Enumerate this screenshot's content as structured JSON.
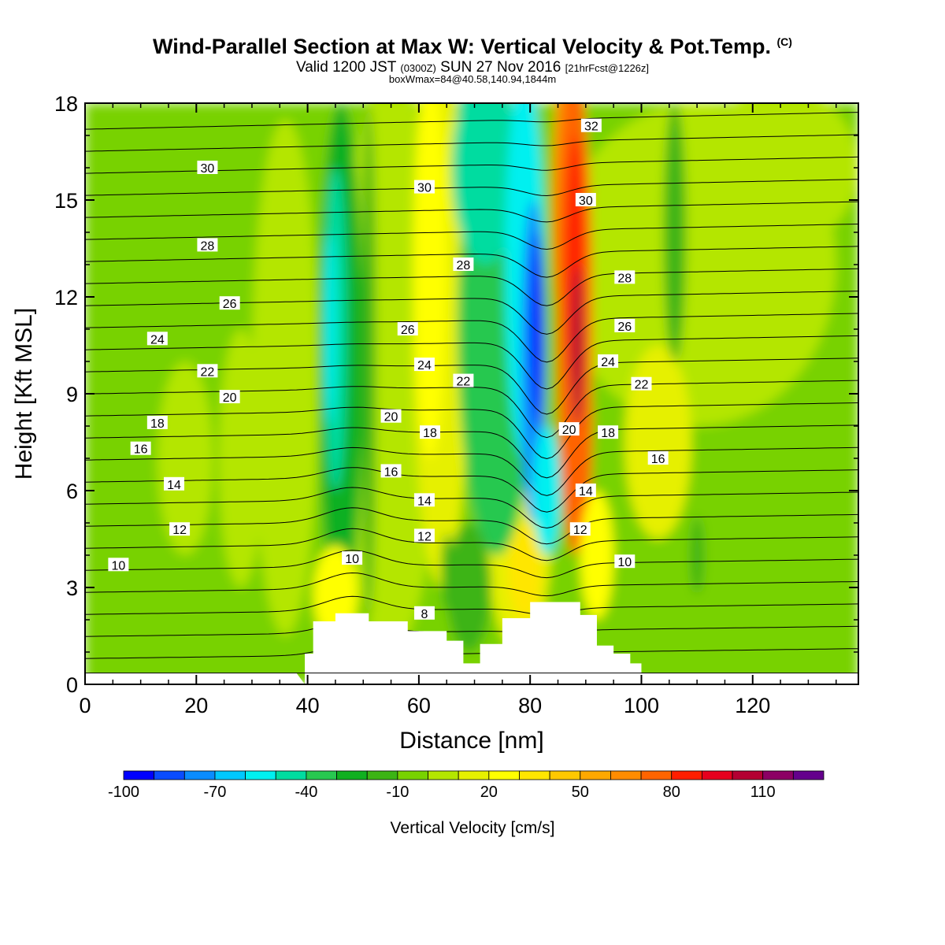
{
  "header": {
    "title": "Wind-Parallel Section at Max W: Vertical Velocity & Pot.Temp.",
    "copyright": "(C)",
    "valid_prefix": "Valid 1200 JST",
    "valid_utc": "(0300Z)",
    "valid_date": "SUN 27 Nov 2016",
    "forecast": "[21hrFcst@1226z]",
    "box_info": "boxWmax=84@40.58,140.94,1844m"
  },
  "chart_data": {
    "type": "heatmap",
    "title": "Wind-Parallel Section at Max W: Vertical Velocity & Pot.Temp.",
    "xlabel": "Distance [nm]",
    "ylabel": "Height [Kft MSL]",
    "xlim": [
      0,
      139
    ],
    "ylim": [
      0,
      18
    ],
    "xticks": [
      0,
      20,
      40,
      60,
      80,
      100,
      120
    ],
    "yticks": [
      0,
      3,
      6,
      9,
      12,
      15,
      18
    ],
    "colorbar": {
      "label": "Vertical Velocity [cm/s]",
      "tick_labels": [
        -100,
        -70,
        -40,
        -10,
        20,
        50,
        80,
        110
      ],
      "min": -100,
      "max": 130,
      "step": 10,
      "colors": [
        "#0000ff",
        "#0a4cff",
        "#0a8cff",
        "#00c8ff",
        "#00f0f0",
        "#00dca0",
        "#28c850",
        "#10b020",
        "#3cb414",
        "#78d200",
        "#b4e600",
        "#e6f000",
        "#ffff00",
        "#ffe600",
        "#ffc800",
        "#ffa800",
        "#ff8c00",
        "#ff6400",
        "#ff1e00",
        "#e6001e",
        "#b40032",
        "#8c0064",
        "#64008c"
      ]
    },
    "terrain_nm_kft": [
      [
        38,
        0
      ],
      [
        39.5,
        0.95
      ],
      [
        41,
        1.95
      ],
      [
        45,
        2.2
      ],
      [
        51,
        1.95
      ],
      [
        58,
        1.65
      ],
      [
        65,
        1.35
      ],
      [
        68,
        0.65
      ],
      [
        71,
        1.25
      ],
      [
        75,
        2.05
      ],
      [
        80,
        2.55
      ],
      [
        86,
        2.55
      ],
      [
        89,
        2.15
      ],
      [
        92,
        1.2
      ],
      [
        95,
        0.95
      ],
      [
        98,
        0.65
      ],
      [
        100,
        0.35
      ]
    ],
    "velocity_features": [
      {
        "kind": "updraft",
        "x_nm": 87.5,
        "y_kft": 11,
        "peak": 84
      },
      {
        "kind": "downdraft",
        "x_nm": 81,
        "y_kft": 10.5,
        "peak": -95
      },
      {
        "kind": "downdraft",
        "x_nm": 46,
        "y_kft": 11,
        "peak": -55
      },
      {
        "kind": "updraft",
        "x_nm": 62,
        "y_kft": 12,
        "peak": 25
      }
    ],
    "theta_contours": {
      "label": "Pot.Temp.",
      "levels": [
        8,
        9,
        10,
        11,
        12,
        13,
        14,
        15,
        16,
        17,
        18,
        19,
        20,
        21,
        22,
        23,
        24,
        25,
        26,
        27,
        28,
        29,
        30,
        31,
        32
      ],
      "labeled": [
        {
          "level": 32,
          "x": 91,
          "y": 17.3
        },
        {
          "level": 30,
          "x": 22,
          "y": 16.0
        },
        {
          "level": 30,
          "x": 61,
          "y": 15.4
        },
        {
          "level": 30,
          "x": 90,
          "y": 15.0
        },
        {
          "level": 28,
          "x": 22,
          "y": 13.6
        },
        {
          "level": 28,
          "x": 68,
          "y": 13.0
        },
        {
          "level": 28,
          "x": 97,
          "y": 12.6
        },
        {
          "level": 26,
          "x": 26,
          "y": 11.8
        },
        {
          "level": 26,
          "x": 58,
          "y": 11.0
        },
        {
          "level": 26,
          "x": 97,
          "y": 11.1
        },
        {
          "level": 24,
          "x": 13,
          "y": 10.7
        },
        {
          "level": 24,
          "x": 61,
          "y": 9.9
        },
        {
          "level": 24,
          "x": 94,
          "y": 10.0
        },
        {
          "level": 22,
          "x": 22,
          "y": 9.7
        },
        {
          "level": 22,
          "x": 68,
          "y": 9.4
        },
        {
          "level": 22,
          "x": 100,
          "y": 9.3
        },
        {
          "level": 20,
          "x": 26,
          "y": 8.9
        },
        {
          "level": 20,
          "x": 55,
          "y": 8.3
        },
        {
          "level": 20,
          "x": 87,
          "y": 7.9
        },
        {
          "level": 18,
          "x": 13,
          "y": 8.1
        },
        {
          "level": 18,
          "x": 62,
          "y": 7.8
        },
        {
          "level": 18,
          "x": 94,
          "y": 7.8
        },
        {
          "level": 16,
          "x": 10,
          "y": 7.3
        },
        {
          "level": 16,
          "x": 55,
          "y": 6.6
        },
        {
          "level": 16,
          "x": 103,
          "y": 7.0
        },
        {
          "level": 14,
          "x": 16,
          "y": 6.2
        },
        {
          "level": 14,
          "x": 61,
          "y": 5.7
        },
        {
          "level": 14,
          "x": 90,
          "y": 6.0
        },
        {
          "level": 12,
          "x": 17,
          "y": 4.8
        },
        {
          "level": 12,
          "x": 61,
          "y": 4.6
        },
        {
          "level": 12,
          "x": 89,
          "y": 4.8
        },
        {
          "level": 10,
          "x": 6,
          "y": 3.7
        },
        {
          "level": 10,
          "x": 48,
          "y": 3.9
        },
        {
          "level": 10,
          "x": 97,
          "y": 3.8
        },
        {
          "level": 8,
          "x": 61,
          "y": 2.2
        }
      ]
    }
  }
}
